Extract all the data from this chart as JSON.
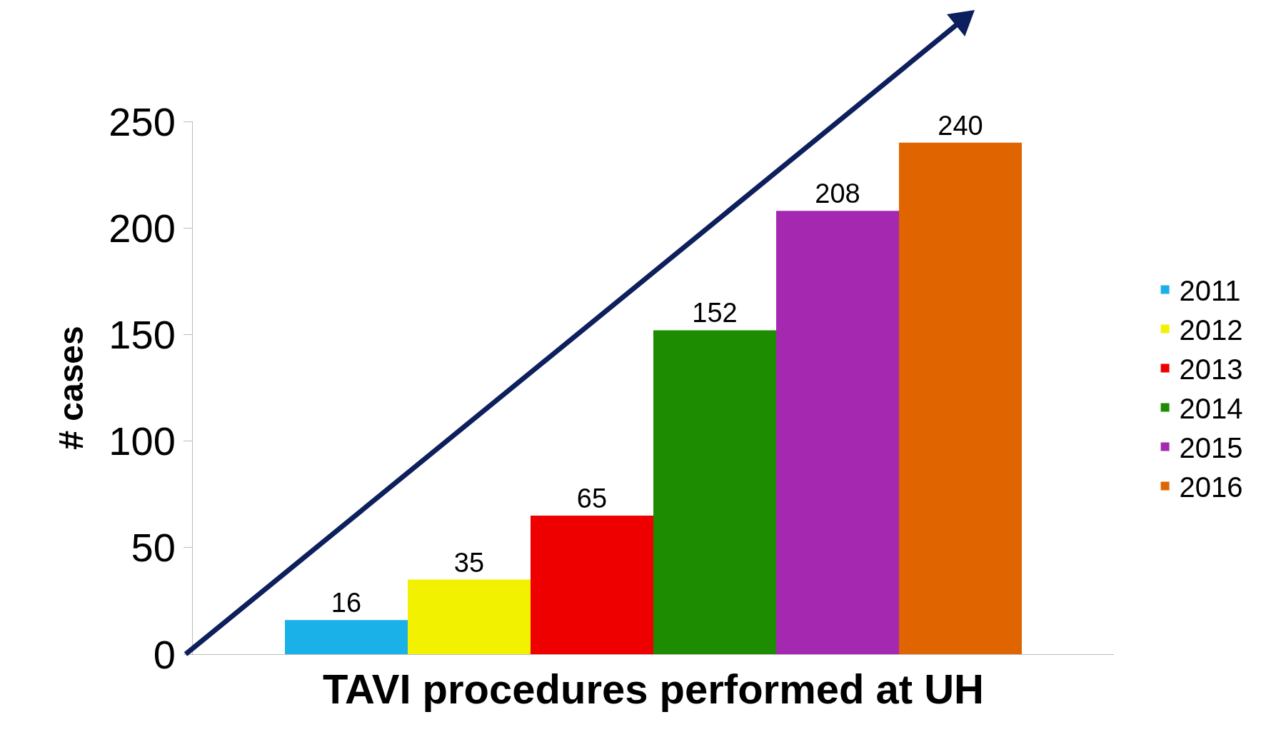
{
  "chart_data": {
    "type": "bar",
    "xlabel": "TAVI procedures performed at UH",
    "ylabel": "# cases",
    "categories": [
      null
    ],
    "series": [
      {
        "name": "2011",
        "color": "#1ab0e8",
        "values": [
          16
        ]
      },
      {
        "name": "2012",
        "color": "#f2f200",
        "values": [
          35
        ]
      },
      {
        "name": "2013",
        "color": "#ee0000",
        "values": [
          65
        ]
      },
      {
        "name": "2014",
        "color": "#1e8c00",
        "values": [
          152
        ]
      },
      {
        "name": "2015",
        "color": "#a429b0",
        "values": [
          208
        ]
      },
      {
        "name": "2016",
        "color": "#e06400",
        "values": [
          240
        ]
      }
    ],
    "ylim": [
      0,
      250
    ],
    "yticks": [
      0,
      50,
      100,
      150,
      200,
      250
    ],
    "legend": "right",
    "data_labels": true
  }
}
